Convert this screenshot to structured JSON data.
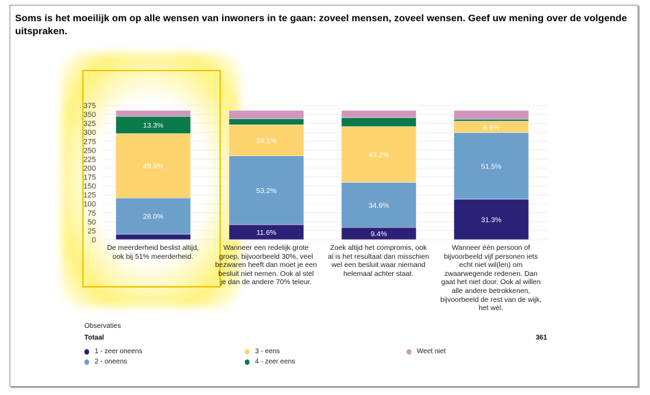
{
  "title": "Soms is het moeilijk om op alle wensen van inwoners in te gaan: zoveel mensen, zoveel wensen. Geef uw mening over de volgende uitspraken.",
  "observaties_label": "Observaties",
  "totaal_label": "Totaal",
  "totaal_value": "361",
  "chart_data": {
    "type": "bar",
    "stacked": true,
    "title": "Soms is het moeilijk om op alle wensen van inwoners in te gaan: zoveel mensen, zoveel wensen. Geef uw mening over de volgende uitspraken.",
    "xlabel": "",
    "ylabel": "",
    "ylim": [
      0,
      375
    ],
    "yticks": [
      0,
      25,
      50,
      75,
      100,
      125,
      150,
      175,
      200,
      225,
      250,
      275,
      300,
      325,
      350,
      375
    ],
    "grid": true,
    "legend_position": "bottom",
    "total_n": 361,
    "categories": [
      "De meerderheid beslist altijd, ook bij 51% meerderheid.",
      "Wanneer een redelijk grote groep, bijvoorbeeld 30%, veel bezwaren heeft dan moet je een besluit niet nemen. Ook al stel je dan de andere 70% teleur.",
      "Zoek altijd het compromis, ook al is het resultaat dan misschien wel een besluit waar niemand helemaal achter staat.",
      "Wanneer één persoon of bijvoorbeeld vijf personen iets echt niet wil(len) om zwaarwegende redenen. Dan gaat het niet door. Ook al willen alle andere betrokkenen, bijvoorbeeld de rest van de wijk, het wèl."
    ],
    "series": [
      {
        "name": "1 - zeer oneens",
        "color": "#2b2176",
        "percent": [
          4.2,
          11.6,
          9.4,
          31.3
        ],
        "labels": [
          "",
          "11.6%",
          "9.4%",
          "31.3%"
        ]
      },
      {
        "name": "2 - oneens",
        "color": "#6d9fcb",
        "percent": [
          28.0,
          53.2,
          34.9,
          51.5
        ],
        "labels": [
          "28.0%",
          "53.2%",
          "34.9%",
          "51.5%"
        ]
      },
      {
        "name": "3 - eens",
        "color": "#fdd36e",
        "percent": [
          49.9,
          24.1,
          43.2,
          8.9
        ],
        "labels": [
          "49.9%",
          "24.1%",
          "43.2%",
          "8.9%"
        ]
      },
      {
        "name": "4 - zeer eens",
        "color": "#0a7a4a",
        "percent": [
          13.3,
          4.7,
          6.9,
          1.5
        ],
        "labels": [
          "13.3%",
          "",
          "",
          ""
        ]
      },
      {
        "name": "Weet niet",
        "color": "#d196bb",
        "percent": [
          4.6,
          6.4,
          5.6,
          6.8
        ],
        "labels": [
          "",
          "",
          "",
          ""
        ]
      }
    ]
  }
}
